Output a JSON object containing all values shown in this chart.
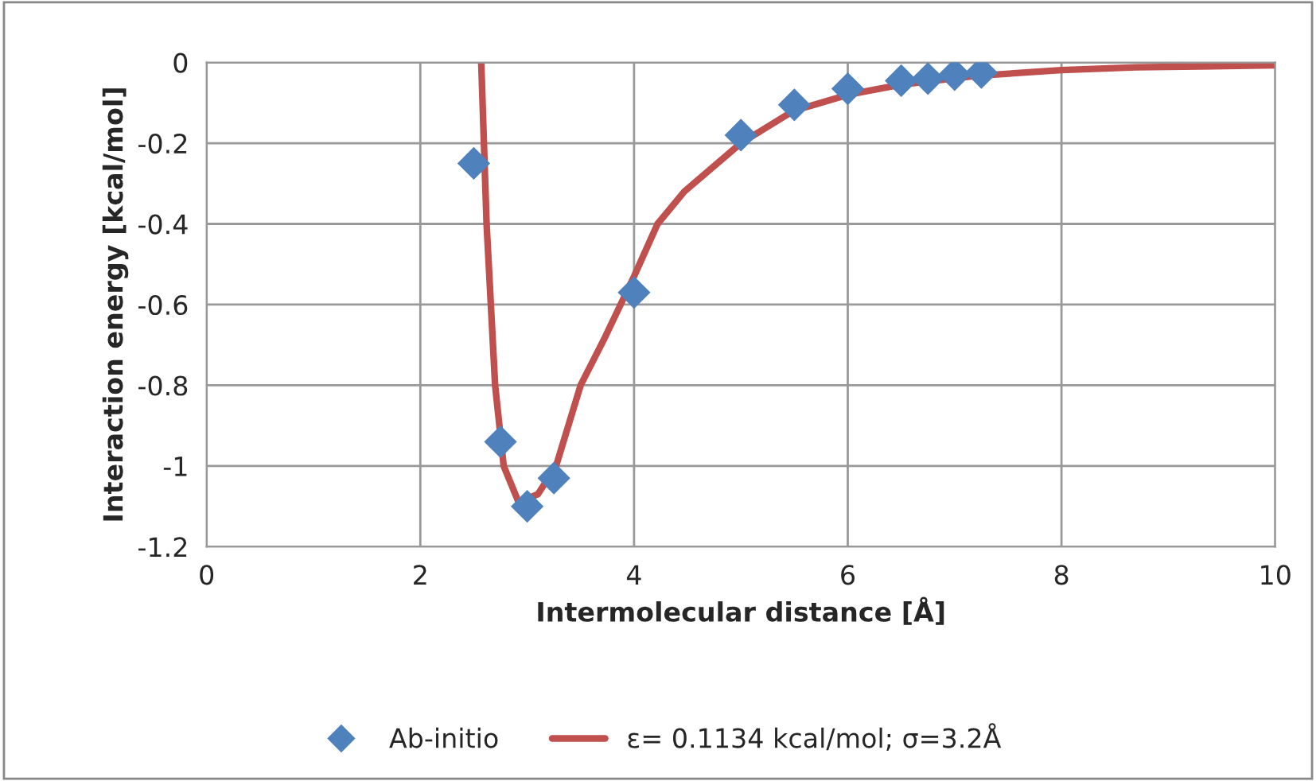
{
  "chart_data": {
    "type": "scatter",
    "xlabel": "Intermolecular distance [Å]",
    "ylabel": "Interaction energy [kcal/mol]",
    "xlim": [
      0,
      10
    ],
    "xticks": [
      0,
      2,
      4,
      6,
      8,
      10
    ],
    "ylim": [
      -1.2,
      0
    ],
    "yticks": [
      -1.2,
      -1,
      -0.8,
      -0.6,
      -0.4,
      -0.2,
      0
    ],
    "grid": true,
    "legend": "bottom",
    "series": [
      {
        "name": "Ab-initio",
        "marker": "diamond",
        "color": "#4f81bd",
        "x": [
          2.5,
          2.75,
          3.0,
          3.25,
          4.0,
          5.0,
          5.5,
          6.0,
          6.5,
          6.75,
          7.0,
          7.25
        ],
        "values": [
          -0.25,
          -0.94,
          -1.1,
          -1.03,
          -0.57,
          -0.18,
          -0.105,
          -0.065,
          -0.045,
          -0.04,
          -0.03,
          -0.025
        ]
      },
      {
        "name": "ε= 0.1134 kcal/mol; σ=3.2Å",
        "type": "line",
        "marker": "none",
        "line_style": "solid",
        "color": "#c0504d",
        "x": [
          2.57,
          2.62,
          2.7,
          2.78,
          2.92,
          3.1,
          3.27,
          3.5,
          3.73,
          4.0,
          4.22,
          4.47,
          5.0,
          5.49,
          6.0,
          6.5,
          7.2,
          8.0,
          8.7,
          10.0
        ],
        "values": [
          0,
          -0.4,
          -0.8,
          -1.0,
          -1.09,
          -1.07,
          -1.0,
          -0.8,
          -0.68,
          -0.53,
          -0.4,
          -0.32,
          -0.2,
          -0.12,
          -0.08,
          -0.055,
          -0.033,
          -0.019,
          -0.012,
          -0.007
        ]
      }
    ]
  }
}
